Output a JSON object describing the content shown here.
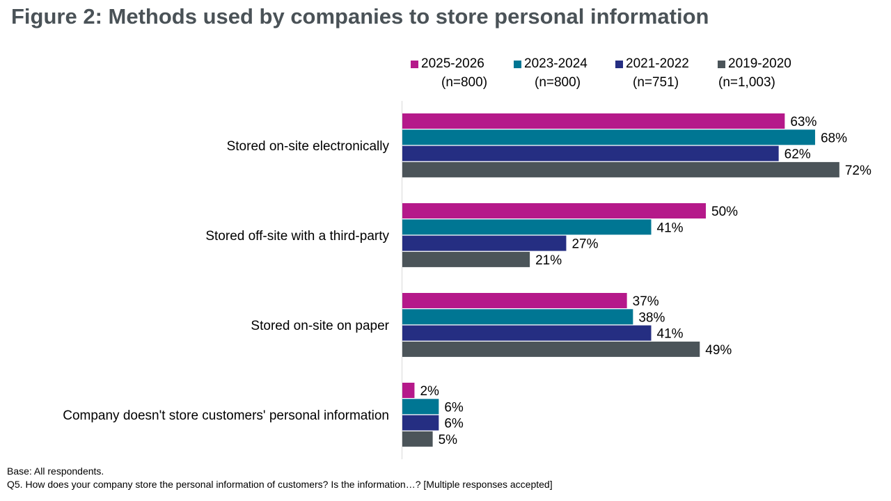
{
  "title": "Figure 2: Methods used by companies to store personal information",
  "legend": [
    {
      "label": "2025-2026",
      "n": "(n=800)",
      "color": "#b5198a"
    },
    {
      "label": "2023-2024",
      "n": "(n=800)",
      "color": "#007693"
    },
    {
      "label": "2021-2022",
      "n": "(n=751)",
      "color": "#252e82"
    },
    {
      "label": "2019-2020",
      "n": "(n=1,003)",
      "color": "#4b5459"
    }
  ],
  "chart_data": {
    "type": "bar",
    "orientation": "horizontal",
    "title": "Figure 2: Methods used by companies to store personal information",
    "categories": [
      "Stored on-site electronically",
      "Stored off-site with a third-party",
      "Stored on-site on paper",
      "Company doesn't store customers' personal information"
    ],
    "series": [
      {
        "name": "2025-2026",
        "values": [
          63,
          50,
          37,
          2
        ],
        "color": "#b5198a"
      },
      {
        "name": "2023-2024",
        "values": [
          68,
          41,
          38,
          6
        ],
        "color": "#007693"
      },
      {
        "name": "2021-2022",
        "values": [
          62,
          27,
          41,
          6
        ],
        "color": "#252e82"
      },
      {
        "name": "2019-2020",
        "values": [
          72,
          21,
          49,
          5
        ],
        "color": "#4b5459"
      }
    ],
    "value_suffix": "%",
    "xlim": [
      0,
      100
    ],
    "grid": false,
    "legend_position": "top-right"
  },
  "footnotes": {
    "base": "Base: All respondents.",
    "question": "Q5. How does your company store the personal information of customers? Is the information…? [Multiple responses accepted]"
  }
}
